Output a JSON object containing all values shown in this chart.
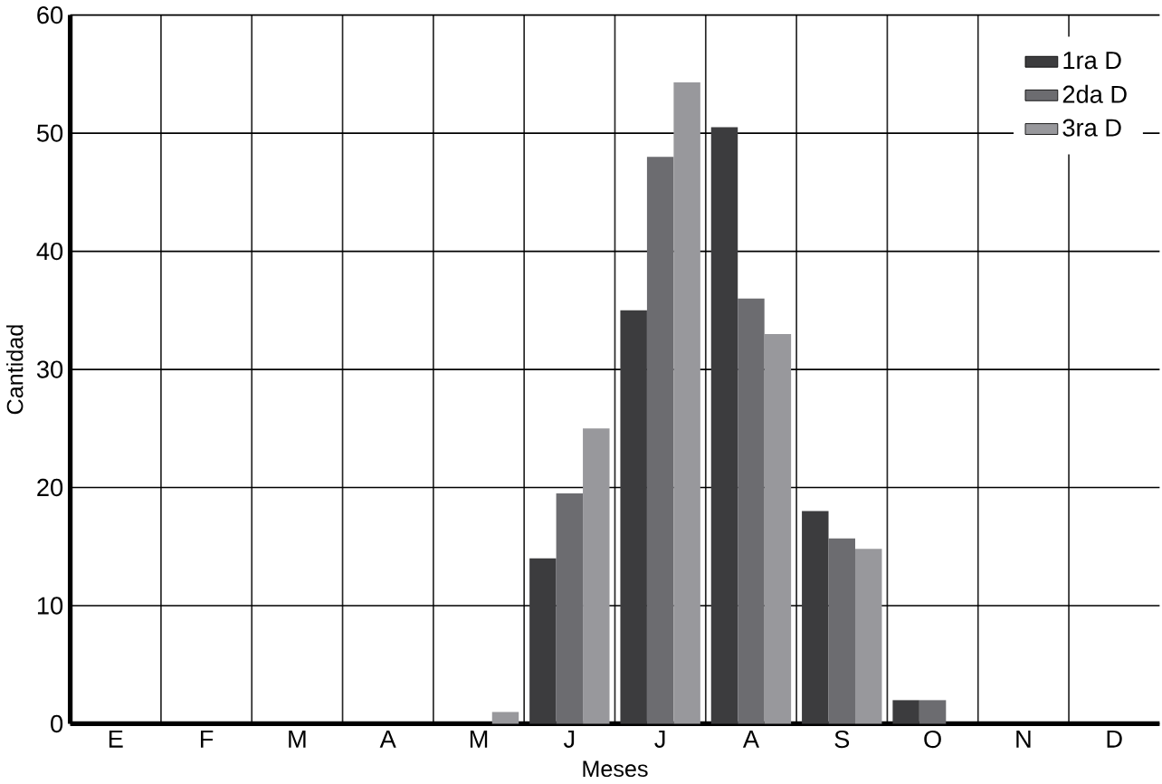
{
  "chart_data": {
    "type": "bar",
    "xlabel": "Meses",
    "ylabel": "Cantidad",
    "categories": [
      "E",
      "F",
      "M",
      "A",
      "M",
      "J",
      "J",
      "A",
      "S",
      "O",
      "N",
      "D"
    ],
    "series": [
      {
        "name": "1ra D",
        "color": "#3c3c3e",
        "values": [
          0,
          0,
          0,
          0,
          0,
          14,
          35,
          50.5,
          18,
          2,
          0,
          0
        ]
      },
      {
        "name": "2da D",
        "color": "#6c6c70",
        "values": [
          0,
          0,
          0,
          0,
          0,
          19.5,
          48,
          36,
          15.7,
          2,
          0,
          0
        ]
      },
      {
        "name": "3ra D",
        "color": "#98989c",
        "values": [
          0,
          0,
          0,
          0,
          1,
          25,
          54.3,
          33,
          14.8,
          0,
          0,
          0
        ]
      }
    ],
    "ylim": [
      0,
      60
    ],
    "yticks": [
      0,
      10,
      20,
      30,
      40,
      50,
      60
    ],
    "grid": true,
    "legend": "top right"
  }
}
